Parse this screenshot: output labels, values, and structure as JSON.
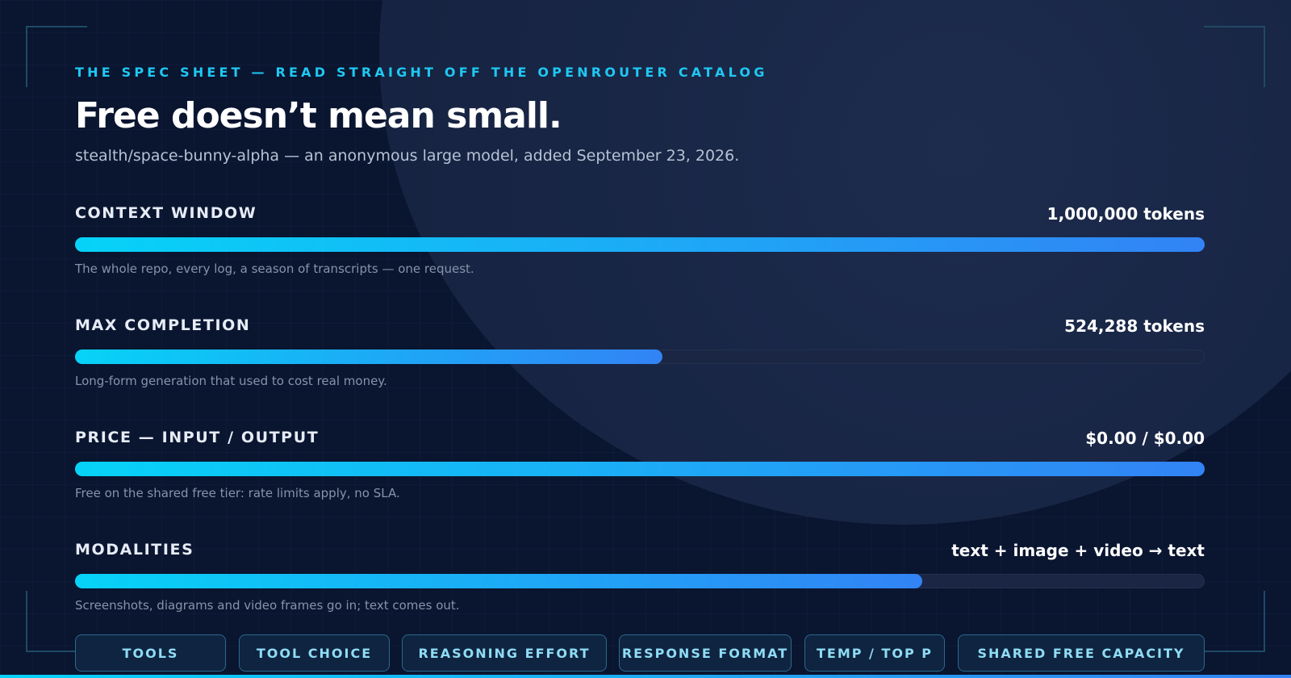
{
  "eyebrow": "THE SPEC SHEET — READ STRAIGHT OFF THE OPENROUTER CATALOG",
  "title": "Free doesn’t mean small.",
  "subtitle": "stealth/space-bunny-alpha — an anonymous large model, added September 23, 2026.",
  "specs": [
    {
      "label": "CONTEXT WINDOW",
      "value": "1,000,000 tokens",
      "note": "The whole repo, every log, a season of transcripts — one request.",
      "fill": 100
    },
    {
      "label": "MAX COMPLETION",
      "value": "524,288 tokens",
      "note": "Long-form generation that used to cost real money.",
      "fill": 52
    },
    {
      "label": "PRICE — INPUT / OUTPUT",
      "value": "$0.00 / $0.00",
      "note": "Free on the shared free tier: rate limits apply, no SLA.",
      "fill": 100
    },
    {
      "label": "MODALITIES",
      "value": "text + image + video → text",
      "note": "Screenshots, diagrams and video frames go in; text comes out.",
      "fill": 75
    }
  ],
  "tags": [
    "TOOLS",
    "TOOL CHOICE",
    "REASONING EFFORT",
    "RESPONSE FORMAT",
    "TEMP / TOP P",
    "SHARED FREE CAPACITY"
  ]
}
